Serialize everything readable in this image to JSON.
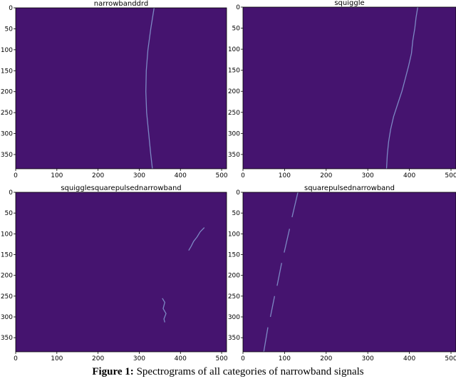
{
  "caption": {
    "label": "Figure 1:",
    "text": "Spectrograms of all categories of narrowband signals"
  },
  "colors": {
    "background": "#ffffff",
    "spectrogram_fill": "#45146f",
    "signal": "#7d88c4",
    "axis": "#000000"
  },
  "chart_data": [
    {
      "type": "heatmap",
      "title": "narrowbanddrd",
      "xlim": [
        0,
        512
      ],
      "ylim": [
        384,
        0
      ],
      "xticks": [
        0,
        100,
        200,
        300,
        400,
        500
      ],
      "yticks": [
        0,
        50,
        100,
        150,
        200,
        250,
        300,
        350
      ],
      "signal": [
        {
          "x": 336,
          "y": 0
        },
        {
          "x": 328,
          "y": 50
        },
        {
          "x": 321,
          "y": 100
        },
        {
          "x": 317,
          "y": 150
        },
        {
          "x": 316,
          "y": 200
        },
        {
          "x": 318,
          "y": 250
        },
        {
          "x": 323,
          "y": 300
        },
        {
          "x": 328,
          "y": 350
        },
        {
          "x": 332,
          "y": 384
        }
      ]
    },
    {
      "type": "heatmap",
      "title": "squiggle",
      "xlim": [
        0,
        512
      ],
      "ylim": [
        384,
        0
      ],
      "xticks": [
        0,
        100,
        200,
        300,
        400,
        500
      ],
      "yticks": [
        0,
        50,
        100,
        150,
        200,
        250,
        300,
        350
      ],
      "signal": [
        {
          "x": 420,
          "y": 0
        },
        {
          "x": 416,
          "y": 25
        },
        {
          "x": 413,
          "y": 50
        },
        {
          "x": 408,
          "y": 80
        },
        {
          "x": 405,
          "y": 110
        },
        {
          "x": 398,
          "y": 140
        },
        {
          "x": 390,
          "y": 170
        },
        {
          "x": 382,
          "y": 200
        },
        {
          "x": 372,
          "y": 230
        },
        {
          "x": 362,
          "y": 260
        },
        {
          "x": 355,
          "y": 290
        },
        {
          "x": 350,
          "y": 320
        },
        {
          "x": 347,
          "y": 350
        },
        {
          "x": 345,
          "y": 384
        }
      ]
    },
    {
      "type": "heatmap",
      "title": "squigglesquarepulsednarrowband",
      "xlim": [
        0,
        512
      ],
      "ylim": [
        384,
        0
      ],
      "xticks": [
        0,
        100,
        200,
        300,
        400,
        500
      ],
      "yticks": [
        0,
        50,
        100,
        150,
        200,
        250,
        300,
        350
      ],
      "signal_segments": [
        [
          {
            "x": 458,
            "y": 85
          },
          {
            "x": 448,
            "y": 95
          },
          {
            "x": 440,
            "y": 108
          },
          {
            "x": 432,
            "y": 118
          },
          {
            "x": 426,
            "y": 130
          },
          {
            "x": 420,
            "y": 140
          }
        ],
        [
          {
            "x": 356,
            "y": 255
          },
          {
            "x": 362,
            "y": 265
          },
          {
            "x": 358,
            "y": 280
          },
          {
            "x": 365,
            "y": 292
          },
          {
            "x": 360,
            "y": 305
          },
          {
            "x": 362,
            "y": 313
          }
        ]
      ]
    },
    {
      "type": "heatmap",
      "title": "squarepulsednarrowband",
      "xlim": [
        0,
        512
      ],
      "ylim": [
        384,
        0
      ],
      "xticks": [
        0,
        100,
        200,
        300,
        400,
        500
      ],
      "yticks": [
        0,
        50,
        100,
        150,
        200,
        250,
        300,
        350
      ],
      "signal_segments": [
        [
          {
            "x": 132,
            "y": 0
          },
          {
            "x": 118,
            "y": 60
          }
        ],
        [
          {
            "x": 112,
            "y": 88
          },
          {
            "x": 99,
            "y": 145
          }
        ],
        [
          {
            "x": 93,
            "y": 170
          },
          {
            "x": 82,
            "y": 225
          }
        ],
        [
          {
            "x": 76,
            "y": 250
          },
          {
            "x": 66,
            "y": 300
          }
        ],
        [
          {
            "x": 60,
            "y": 325
          },
          {
            "x": 50,
            "y": 384
          }
        ]
      ]
    }
  ]
}
